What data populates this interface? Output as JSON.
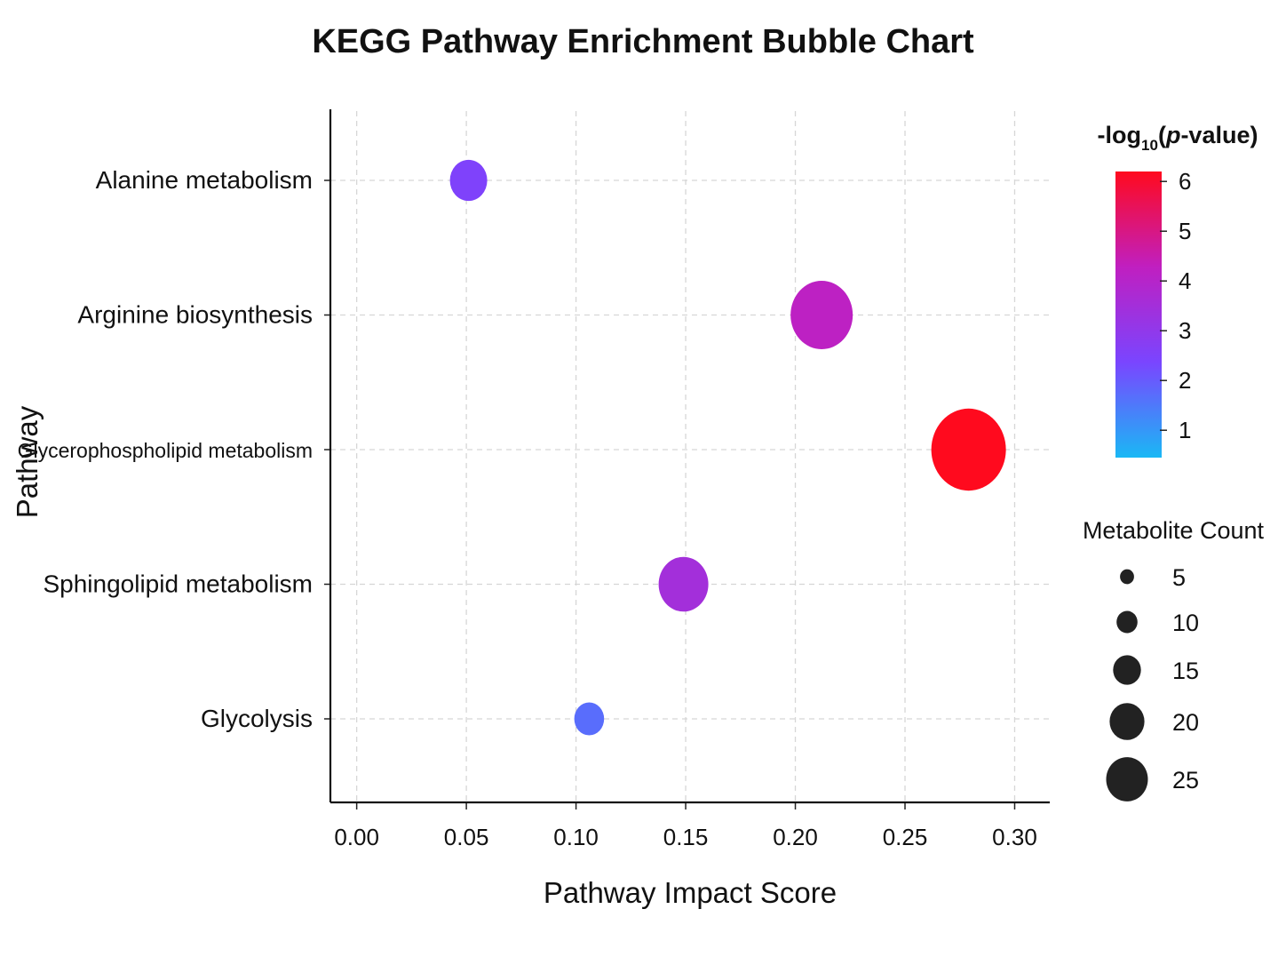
{
  "chart_data": {
    "type": "scatter",
    "title": "KEGG Pathway Enrichment Bubble Chart",
    "xlabel": "Pathway Impact Score",
    "ylabel": "Pathway",
    "xlim": [
      -0.012,
      0.316
    ],
    "xticks": [
      "0.00",
      "0.05",
      "0.10",
      "0.15",
      "0.20",
      "0.25",
      "0.30"
    ],
    "xtick_values": [
      0,
      0.05,
      0.1,
      0.15,
      0.2,
      0.25,
      0.3
    ],
    "categories": [
      "Alanine metabolism",
      "Arginine biosynthesis",
      "Glycerophospholipid metabolism",
      "Sphingolipid metabolism",
      "Glycolysis"
    ],
    "points": [
      {
        "pathway": "Alanine metabolism",
        "impact": 0.051,
        "neg_log10_p": 2.5,
        "count": 10
      },
      {
        "pathway": "Arginine biosynthesis",
        "impact": 0.212,
        "neg_log10_p": 4.2,
        "count": 20
      },
      {
        "pathway": "Glycerophospholipid metabolism",
        "impact": 0.279,
        "neg_log10_p": 6.2,
        "count": 25
      },
      {
        "pathway": "Sphingolipid metabolism",
        "impact": 0.149,
        "neg_log10_p": 3.5,
        "count": 15
      },
      {
        "pathway": "Glycolysis",
        "impact": 0.106,
        "neg_log10_p": 1.7,
        "count": 7
      }
    ],
    "grid": true,
    "colorbar": {
      "title_prefix": "-log",
      "title_sub": "10",
      "title_open": "(",
      "title_italic": "p",
      "title_suffix": "-value)",
      "range": [
        0.45,
        6.2
      ],
      "ticks": [
        1,
        2,
        3,
        4,
        5,
        6
      ],
      "colors": [
        "#1ab8f5",
        "#7a45ff",
        "#c01fc0",
        "#ff0a1e"
      ],
      "placement": "right-top"
    },
    "size_legend": {
      "title": "Metabolite Count",
      "values": [
        5,
        10,
        15,
        20,
        25
      ],
      "color": "#222222",
      "placement": "right-bottom"
    }
  }
}
